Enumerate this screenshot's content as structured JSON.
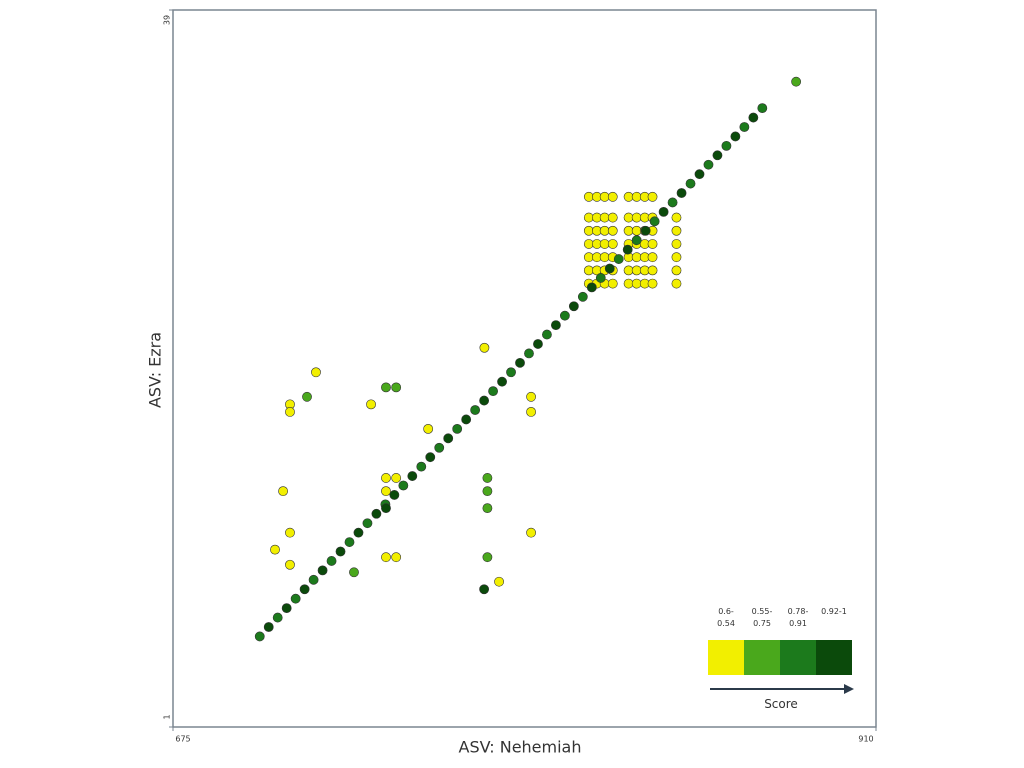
{
  "chart_data": {
    "type": "scatter",
    "x_label": "ASV: Nehemiah",
    "y_label": "ASV: Ezra",
    "xlim": [
      675,
      910
    ],
    "ylim": [
      1,
      39
    ],
    "xticks": [
      675,
      910
    ],
    "yticks": [
      1,
      39
    ],
    "legend_title": "Score",
    "legend": "bottom-right",
    "series": [
      {
        "name": "0.6-0.54",
        "color": "#f2ef00",
        "x": [
          814,
          816.7,
          819.3,
          822,
          827.3,
          830,
          832.7,
          835.3,
          843.3,
          814,
          816.7,
          819.3,
          822,
          827.3,
          830,
          832.7,
          835.3,
          843.3,
          814,
          816.7,
          819.3,
          822,
          827.3,
          830,
          832.7,
          835.3,
          843.3,
          814,
          816.7,
          819.3,
          822,
          827.3,
          830,
          832.7,
          835.3,
          843.3,
          814,
          816.7,
          819.3,
          822,
          827.3,
          830,
          832.7,
          835.3,
          843.3,
          814,
          816.7,
          819.3,
          822,
          827.3,
          830,
          832.7,
          835.3,
          843.3,
          814,
          816.7,
          819.3,
          822,
          827.3,
          830,
          832.7,
          835.3,
          722.8,
          714.1,
          714.1,
          741.2,
          760.3,
          779.1,
          794.7,
          794.7,
          711.8,
          714.1,
          709.1,
          714.1,
          746.2,
          749.6,
          746.2,
          746.2,
          749.6,
          794.7,
          784
        ],
        "values": [
          28,
          28,
          28,
          28,
          28,
          28,
          28,
          28,
          28,
          27.3,
          27.3,
          27.3,
          27.3,
          27.3,
          27.3,
          27.3,
          27.3,
          27.3,
          26.6,
          26.6,
          26.6,
          26.6,
          26.6,
          26.6,
          26.6,
          26.6,
          26.6,
          25.9,
          25.9,
          25.9,
          25.9,
          25.9,
          25.9,
          25.9,
          25.9,
          25.9,
          25.2,
          25.2,
          25.2,
          25.2,
          25.2,
          25.2,
          25.2,
          25.2,
          25.2,
          24.5,
          24.5,
          24.5,
          24.5,
          24.5,
          24.5,
          24.5,
          24.5,
          24.5,
          29.1,
          29.1,
          29.1,
          29.1,
          29.1,
          29.1,
          29.1,
          29.1,
          19.8,
          18.1,
          17.7,
          18.1,
          16.8,
          21.1,
          18.5,
          17.7,
          13.5,
          11.3,
          10.4,
          9.6,
          14.2,
          14.2,
          13.5,
          10.0,
          10.0,
          11.3,
          8.7
        ]
      },
      {
        "name": "0.55-0.75",
        "color": "#4aa81c",
        "x": [
          883.3,
          719.8,
          746.2,
          749.6,
          780.1,
          780.1,
          780.1,
          780.1,
          735.5
        ],
        "values": [
          35.2,
          18.5,
          19.0,
          19.0,
          14.2,
          13.5,
          12.6,
          10.0,
          9.2
        ]
      },
      {
        "name": "0.78-0.91",
        "color": "#1c7a1c",
        "x": [
          704,
          710,
          716,
          722,
          728,
          734,
          740,
          746,
          752,
          758,
          764,
          770,
          776,
          782,
          788,
          794,
          800,
          806,
          812,
          818,
          824,
          830,
          836,
          842,
          848,
          854,
          860,
          866,
          872
        ],
        "values": [
          5.8,
          6.8,
          7.8,
          8.8,
          9.8,
          10.8,
          11.8,
          12.8,
          13.8,
          14.8,
          15.8,
          16.8,
          17.8,
          18.8,
          19.8,
          20.8,
          21.8,
          22.8,
          23.8,
          24.8,
          25.8,
          26.8,
          27.8,
          28.8,
          29.8,
          30.8,
          31.8,
          32.8,
          33.8
        ]
      },
      {
        "name": "0.92-1",
        "color": "#0b4a0b",
        "x": [
          707,
          713,
          719,
          725,
          731,
          737,
          743,
          749,
          755,
          761,
          767,
          773,
          779,
          785,
          791,
          797,
          803,
          809,
          815,
          821,
          827,
          833,
          839,
          845,
          851,
          857,
          863,
          869,
          746.2,
          779
        ],
        "values": [
          6.3,
          7.3,
          8.3,
          9.3,
          10.3,
          11.3,
          12.3,
          13.3,
          14.3,
          15.3,
          16.3,
          17.3,
          18.3,
          19.3,
          20.3,
          21.3,
          22.3,
          23.3,
          24.3,
          25.3,
          26.3,
          27.3,
          28.3,
          29.3,
          30.3,
          31.3,
          32.3,
          33.3,
          12.6,
          8.3
        ]
      }
    ]
  }
}
